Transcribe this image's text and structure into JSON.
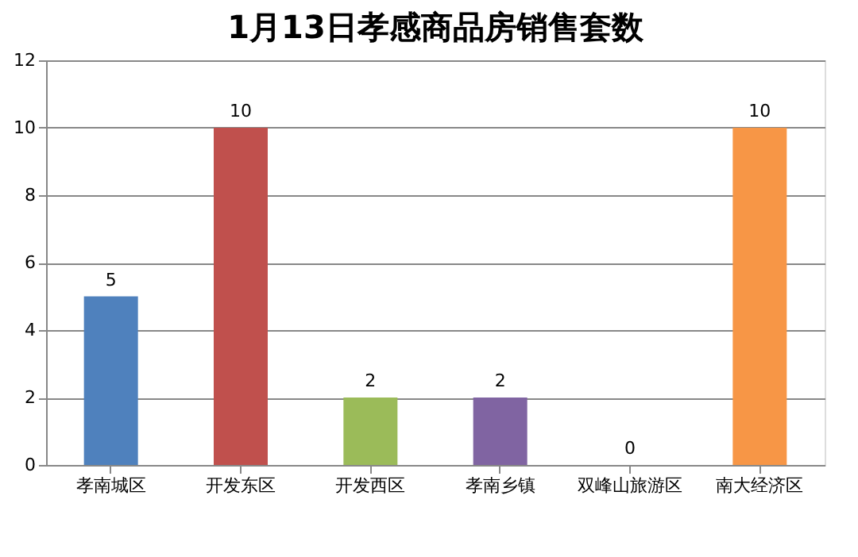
{
  "chart_data": {
    "type": "bar",
    "title": "1月13日孝感商品房销售套数",
    "categories": [
      "孝南城区",
      "开发东区",
      "开发西区",
      "孝南乡镇",
      "双峰山旅游区",
      "南大经济区"
    ],
    "values": [
      5,
      10,
      2,
      2,
      0,
      10
    ],
    "colors": [
      "#4f81bd",
      "#c0504d",
      "#9bbb59",
      "#8064a2",
      "#4bacc6",
      "#f79646"
    ],
    "ylim": [
      0,
      12
    ],
    "yticks": [
      0,
      2,
      4,
      6,
      8,
      10,
      12
    ],
    "grid": "y",
    "data_labels": true
  }
}
